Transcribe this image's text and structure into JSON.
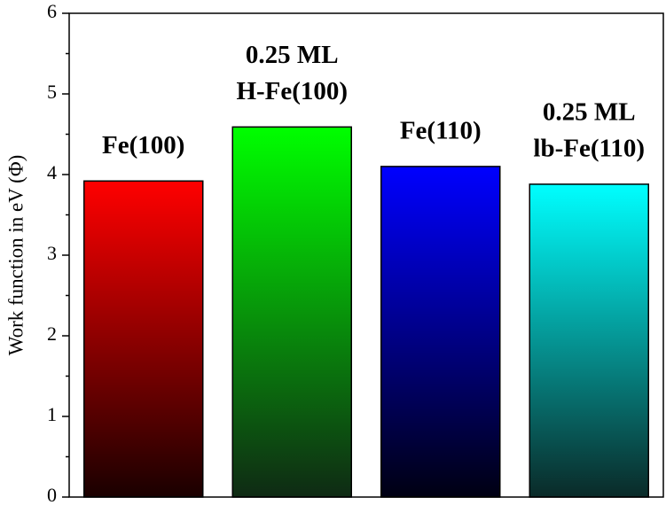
{
  "chart_data": {
    "type": "bar",
    "ylabel": "Work function in eV (Φ)",
    "categories": [
      [
        "Fe(100)"
      ],
      [
        "0.25 ML",
        "H-Fe(100)"
      ],
      [
        "Fe(110)"
      ],
      [
        "0.25 ML",
        "lb-Fe(110)"
      ]
    ],
    "values": [
      3.92,
      4.59,
      4.1,
      3.88
    ],
    "colors": [
      "#ff0000",
      "#00ff00",
      "#0000ff",
      "#00ffff"
    ],
    "gradient_to": [
      "#1a0000",
      "#0f2a14",
      "#000012",
      "#0a2a28"
    ],
    "ylim": [
      0,
      6
    ],
    "yticks": [
      0,
      1,
      2,
      3,
      4,
      5,
      6
    ],
    "minor_yticks": [
      0.5,
      1.5,
      2.5,
      3.5,
      4.5,
      5.5
    ],
    "grid": false
  }
}
